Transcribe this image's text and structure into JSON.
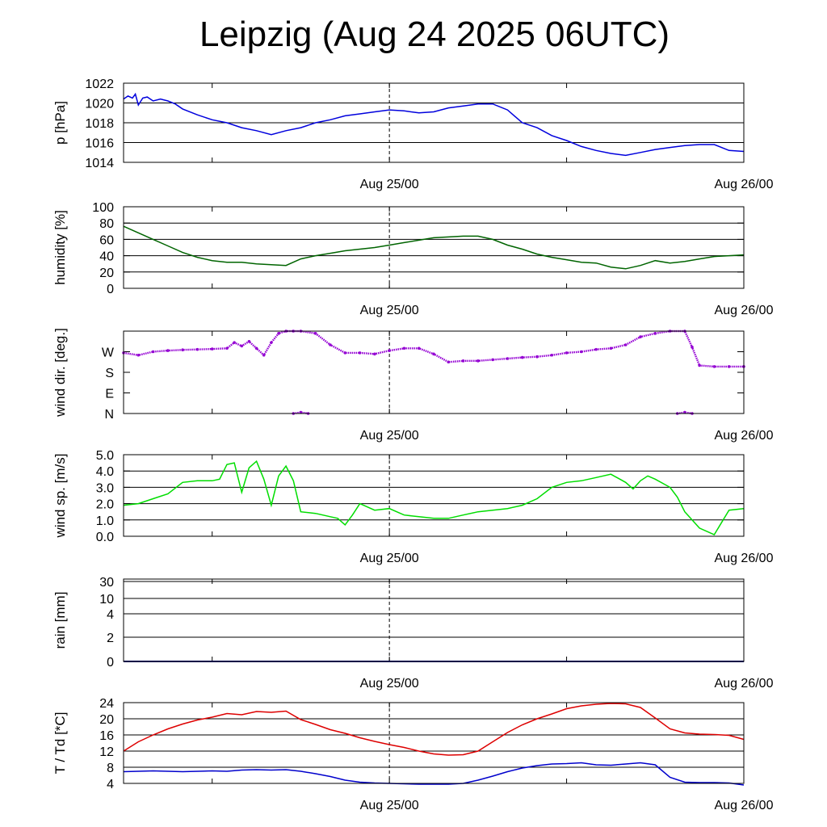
{
  "title": "Leipzig (Aug 24 2025 06UTC)",
  "x_range_hours": [
    0,
    42
  ],
  "x_date_labels": [
    {
      "text": "Aug 25/00",
      "hour": 18
    },
    {
      "text": "Aug 26/00",
      "hour": 42
    }
  ],
  "x_minor_tick_hours": [
    6,
    18,
    30,
    42
  ],
  "colors": {
    "pressure": "#0000dd",
    "humidity": "#006400",
    "wind_dir": "#9400d3",
    "wind_speed": "#00dd00",
    "rain": "#00008b",
    "temperature": "#dd0000",
    "dewpoint": "#0000cc",
    "grid": "#000000"
  },
  "chart_data": [
    {
      "id": "pressure",
      "type": "line",
      "ylabel": "p [hPa]",
      "ylim": [
        1014,
        1022
      ],
      "yticks": [
        {
          "v": 1014,
          "t": "1014"
        },
        {
          "v": 1016,
          "t": "1016"
        },
        {
          "v": 1018,
          "t": "1018"
        },
        {
          "v": 1020,
          "t": "1020"
        },
        {
          "v": 1022,
          "t": "1022"
        }
      ],
      "grid": [
        1016,
        1018,
        1020,
        1022
      ],
      "series": [
        {
          "name": "p",
          "color_key": "pressure",
          "x": [
            0,
            0.3,
            0.6,
            0.8,
            1.0,
            1.3,
            1.6,
            2,
            2.5,
            3,
            3.5,
            4,
            5,
            6,
            7,
            8,
            9,
            10,
            11,
            12,
            13,
            14,
            15,
            16,
            17,
            18,
            19,
            20,
            21,
            22,
            23,
            24,
            25,
            26,
            27,
            28,
            29,
            30,
            31,
            32,
            33,
            34,
            35,
            36,
            37,
            38,
            39,
            40,
            41,
            42
          ],
          "y": [
            1020.4,
            1020.7,
            1020.5,
            1020.9,
            1019.8,
            1020.5,
            1020.6,
            1020.2,
            1020.4,
            1020.2,
            1019.9,
            1019.4,
            1018.8,
            1018.3,
            1018.0,
            1017.5,
            1017.2,
            1016.8,
            1017.2,
            1017.5,
            1018.0,
            1018.3,
            1018.7,
            1018.9,
            1019.1,
            1019.3,
            1019.2,
            1019.0,
            1019.1,
            1019.5,
            1019.7,
            1019.9,
            1019.9,
            1019.3,
            1018.0,
            1017.5,
            1016.7,
            1016.2,
            1015.6,
            1015.2,
            1014.9,
            1014.7,
            1015.0,
            1015.3,
            1015.5,
            1015.7,
            1015.8,
            1015.8,
            1015.2,
            1015.1
          ]
        }
      ]
    },
    {
      "id": "humidity",
      "type": "line",
      "ylabel": "humidity [%]",
      "ylim": [
        0,
        100
      ],
      "yticks": [
        {
          "v": 0,
          "t": "0"
        },
        {
          "v": 20,
          "t": "20"
        },
        {
          "v": 40,
          "t": "40"
        },
        {
          "v": 60,
          "t": "60"
        },
        {
          "v": 80,
          "t": "80"
        },
        {
          "v": 100,
          "t": "100"
        }
      ],
      "grid": [
        20,
        40,
        60,
        80
      ],
      "series": [
        {
          "name": "humidity",
          "color_key": "humidity",
          "x": [
            0,
            1,
            2,
            3,
            4,
            5,
            6,
            7,
            8,
            9,
            10,
            11,
            12,
            13,
            14,
            15,
            16,
            17,
            18,
            19,
            20,
            21,
            22,
            23,
            24,
            25,
            26,
            27,
            28,
            29,
            30,
            31,
            32,
            33,
            34,
            35,
            36,
            37,
            38,
            39,
            40,
            41,
            42
          ],
          "y": [
            76,
            68,
            60,
            52,
            44,
            38,
            34,
            32,
            32,
            30,
            29,
            28,
            36,
            40,
            43,
            46,
            48,
            50,
            53,
            56,
            59,
            62,
            63,
            64,
            64,
            60,
            53,
            48,
            42,
            38,
            35,
            32,
            31,
            26,
            24,
            28,
            34,
            31,
            33,
            36,
            39,
            40,
            41
          ]
        }
      ]
    },
    {
      "id": "wind_dir",
      "type": "scatter",
      "ylabel": "wind dir. [deg.]",
      "ylim": [
        0,
        360
      ],
      "yticks": [
        {
          "v": 0,
          "t": "N"
        },
        {
          "v": 90,
          "t": "E"
        },
        {
          "v": 180,
          "t": "S"
        },
        {
          "v": 270,
          "t": "W"
        }
      ],
      "grid": [],
      "series": [
        {
          "name": "direction",
          "color_key": "wind_dir",
          "x": [
            0,
            1,
            2,
            3,
            4,
            5,
            6,
            7,
            7.5,
            8,
            8.5,
            9,
            9.5,
            10,
            10.5,
            11,
            11.5,
            12,
            13,
            14,
            15,
            16,
            17,
            18,
            19,
            20,
            21,
            22,
            23,
            24,
            25,
            26,
            27,
            28,
            29,
            30,
            31,
            32,
            33,
            34,
            35,
            36,
            37,
            38,
            38.5,
            39,
            40,
            41,
            42
          ],
          "y": [
            265,
            255,
            270,
            275,
            278,
            280,
            282,
            285,
            310,
            295,
            315,
            285,
            255,
            310,
            350,
            360,
            360,
            360,
            350,
            300,
            265,
            265,
            260,
            275,
            285,
            285,
            260,
            225,
            230,
            230,
            235,
            240,
            245,
            248,
            255,
            265,
            270,
            280,
            285,
            300,
            335,
            350,
            360,
            360,
            290,
            210,
            205,
            205,
            205
          ]
        },
        {
          "name": "direction-wrap",
          "color_key": "wind_dir",
          "x": [
            11.5,
            12,
            12.5,
            37.5,
            38,
            38.5
          ],
          "y": [
            0,
            5,
            0,
            0,
            5,
            0
          ]
        }
      ]
    },
    {
      "id": "wind_speed",
      "type": "line",
      "ylabel": "wind sp. [m/s]",
      "ylim": [
        0,
        5
      ],
      "yticks": [
        {
          "v": 0,
          "t": "0.0"
        },
        {
          "v": 1,
          "t": "1.0"
        },
        {
          "v": 2,
          "t": "2.0"
        },
        {
          "v": 3,
          "t": "3.0"
        },
        {
          "v": 4,
          "t": "4.0"
        },
        {
          "v": 5,
          "t": "5.0"
        }
      ],
      "grid": [
        1,
        2,
        3,
        4
      ],
      "series": [
        {
          "name": "speed",
          "color_key": "wind_speed",
          "x": [
            0,
            1,
            2,
            3,
            4,
            5,
            6,
            6.5,
            7,
            7.5,
            8,
            8.5,
            9,
            9.5,
            10,
            10.5,
            11,
            11.5,
            12,
            13,
            14,
            14.5,
            15,
            15.5,
            16,
            17,
            18,
            19,
            20,
            21,
            22,
            23,
            24,
            25,
            26,
            27,
            28,
            29,
            30,
            31,
            32,
            33,
            34,
            34.5,
            35,
            35.5,
            36,
            37,
            37.5,
            38,
            39,
            40,
            41,
            42
          ],
          "y": [
            1.9,
            2.0,
            2.3,
            2.6,
            3.3,
            3.4,
            3.4,
            3.5,
            4.4,
            4.5,
            2.7,
            4.2,
            4.6,
            3.5,
            1.9,
            3.7,
            4.3,
            3.4,
            1.5,
            1.4,
            1.2,
            1.1,
            0.7,
            1.3,
            2.0,
            1.6,
            1.7,
            1.3,
            1.2,
            1.1,
            1.1,
            1.3,
            1.5,
            1.6,
            1.7,
            1.9,
            2.3,
            3.0,
            3.3,
            3.4,
            3.6,
            3.8,
            3.3,
            2.9,
            3.4,
            3.7,
            3.5,
            3.0,
            2.4,
            1.5,
            0.5,
            0.1,
            1.6,
            1.7
          ]
        }
      ]
    },
    {
      "id": "rain",
      "type": "line",
      "ylabel": "rain [mm]",
      "scale": "nonlinear",
      "ylim": [
        0,
        30
      ],
      "yticks": [
        {
          "v": 0,
          "t": "0"
        },
        {
          "v": 2,
          "t": "2"
        },
        {
          "v": 4,
          "t": "4"
        },
        {
          "v": 10,
          "t": "10"
        },
        {
          "v": 30,
          "t": "30"
        }
      ],
      "grid": [
        2,
        4,
        10,
        30
      ],
      "series": [
        {
          "name": "rain",
          "color_key": "rain",
          "x": [
            0,
            42
          ],
          "y": [
            0,
            0
          ]
        }
      ]
    },
    {
      "id": "temperature",
      "type": "line",
      "ylabel": "T / Td [*C]",
      "ylim": [
        4,
        24
      ],
      "yticks": [
        {
          "v": 4,
          "t": "4"
        },
        {
          "v": 8,
          "t": "8"
        },
        {
          "v": 12,
          "t": "12"
        },
        {
          "v": 16,
          "t": "16"
        },
        {
          "v": 20,
          "t": "20"
        },
        {
          "v": 24,
          "t": "24"
        }
      ],
      "grid": [
        8,
        12,
        16,
        20,
        24
      ],
      "series": [
        {
          "name": "T",
          "color_key": "temperature",
          "x": [
            0,
            1,
            2,
            3,
            4,
            5,
            6,
            7,
            8,
            9,
            10,
            11,
            12,
            13,
            14,
            15,
            16,
            17,
            18,
            19,
            20,
            21,
            22,
            23,
            24,
            25,
            26,
            27,
            28,
            29,
            30,
            31,
            32,
            33,
            34,
            35,
            36,
            37,
            38,
            39,
            40,
            41,
            42
          ],
          "y": [
            12.0,
            14.3,
            16.0,
            17.5,
            18.7,
            19.7,
            20.4,
            21.3,
            21.0,
            21.8,
            21.6,
            21.9,
            19.8,
            18.6,
            17.3,
            16.4,
            15.3,
            14.4,
            13.6,
            12.9,
            12.0,
            11.3,
            11.0,
            11.1,
            12.0,
            14.3,
            16.6,
            18.5,
            20.0,
            21.2,
            22.5,
            23.2,
            23.6,
            23.8,
            23.7,
            22.8,
            20.2,
            17.5,
            16.5,
            16.2,
            16.1,
            15.9,
            14.9
          ]
        },
        {
          "name": "Td",
          "color_key": "dewpoint",
          "x": [
            0,
            2,
            4,
            6,
            7,
            8,
            9,
            10,
            11,
            12,
            13,
            14,
            15,
            16,
            17,
            18,
            19,
            20,
            21,
            22,
            23,
            24,
            25,
            26,
            27,
            28,
            29,
            30,
            31,
            32,
            33,
            34,
            35,
            36,
            37,
            38,
            39,
            40,
            41,
            42
          ],
          "y": [
            6.9,
            7.1,
            6.9,
            7.1,
            7.0,
            7.3,
            7.4,
            7.3,
            7.4,
            7.0,
            6.4,
            5.7,
            4.8,
            4.3,
            4.1,
            4.0,
            3.9,
            3.8,
            3.8,
            3.8,
            4.0,
            4.8,
            5.8,
            6.9,
            7.8,
            8.4,
            8.8,
            8.9,
            9.1,
            8.6,
            8.5,
            8.8,
            9.1,
            8.6,
            5.5,
            4.3,
            4.2,
            4.2,
            4.1,
            3.6
          ]
        }
      ]
    }
  ]
}
